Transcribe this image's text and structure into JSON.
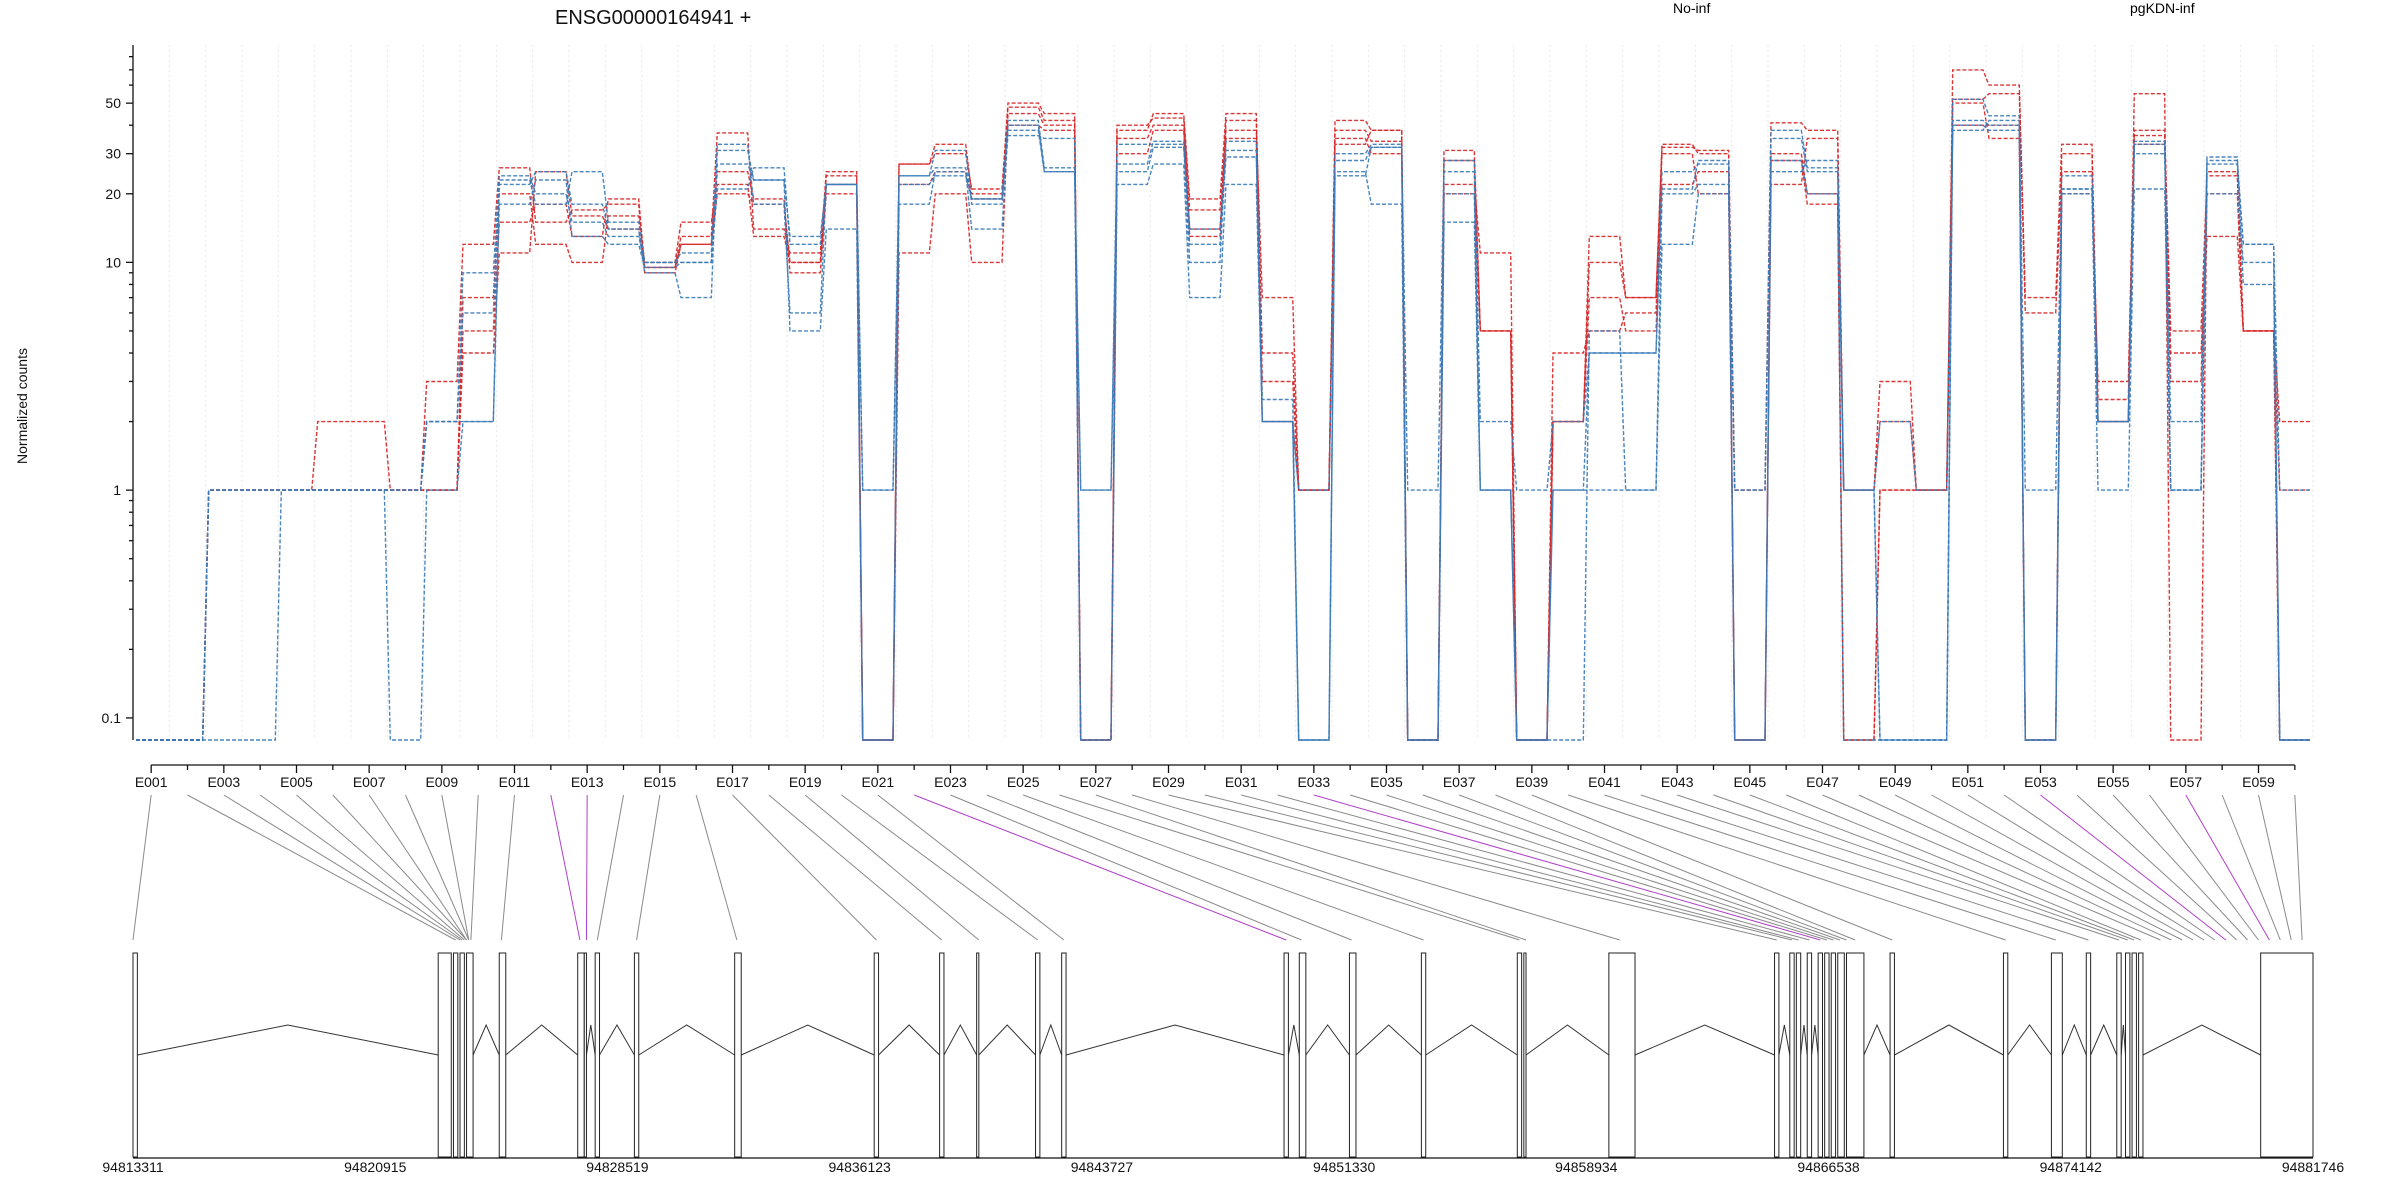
{
  "chart_data": {
    "type": "line",
    "title": "ENSG00000164941 +",
    "ylabel": "Normalized counts",
    "yscale": "log",
    "ylim": [
      0.08,
      90
    ],
    "yticks": [
      0.1,
      1,
      10,
      20,
      30,
      50
    ],
    "yticklabels": [
      "0.1",
      "1",
      "10",
      "20",
      "30",
      "50"
    ],
    "legend": [
      {
        "name": "No-inf",
        "color": "#d62728"
      },
      {
        "name": "pgKDN-inf",
        "color": "#3b7bb8"
      }
    ],
    "exons": [
      "E001",
      "E002",
      "E003",
      "E004",
      "E005",
      "E006",
      "E007",
      "E008",
      "E009",
      "E010",
      "E011",
      "E012",
      "E013",
      "E014",
      "E015",
      "E016",
      "E017",
      "E018",
      "E019",
      "E020",
      "E021",
      "E022",
      "E023",
      "E024",
      "E025",
      "E026",
      "E027",
      "E028",
      "E029",
      "E030",
      "E031",
      "E032",
      "E033",
      "E034",
      "E035",
      "E036",
      "E037",
      "E038",
      "E039",
      "E040",
      "E041",
      "E042",
      "E043",
      "E044",
      "E045",
      "E046",
      "E047",
      "E048",
      "E049",
      "E050",
      "E051",
      "E052",
      "E053",
      "E054",
      "E055",
      "E056",
      "E057",
      "E058",
      "E059",
      "E060"
    ],
    "exon_tick_labels": [
      "E001",
      "E003",
      "E005",
      "E007",
      "E009",
      "E011",
      "E013",
      "E015",
      "E017",
      "E019",
      "E021",
      "E023",
      "E025",
      "E027",
      "E029",
      "E031",
      "E033",
      "E035",
      "E037",
      "E039",
      "E041",
      "E043",
      "E045",
      "E047",
      "E049",
      "E051",
      "E053",
      "E055",
      "E057",
      "E059"
    ],
    "series": [
      {
        "group": "No-inf",
        "values": [
          0.08,
          0.08,
          1.0,
          1.0,
          1.0,
          1.0,
          1.0,
          1.0,
          1.0,
          4.0,
          11.0,
          25.0,
          16.0,
          14.0,
          9.5,
          12.0,
          25.0,
          19.0,
          9.0,
          22.0,
          0.08,
          22.0,
          25.0,
          19.0,
          40.0,
          38.0,
          0.08,
          30.0,
          38.0,
          14.0,
          35.0,
          2.0,
          1.0,
          35.0,
          30.0,
          0.08,
          28.0,
          5.0,
          0.08,
          2.0,
          7.0,
          5.0,
          22.0,
          25.0,
          0.08,
          30.0,
          20.0,
          0.08,
          1.0,
          1.0,
          40.0,
          40.0,
          0.08,
          30.0,
          2.5,
          33.0,
          3.0,
          20.0,
          5.0,
          0.08
        ]
      },
      {
        "group": "No-inf",
        "values": [
          0.08,
          0.08,
          1.0,
          1.0,
          1.0,
          1.0,
          1.0,
          1.0,
          1.0,
          5.0,
          15.0,
          18.0,
          13.0,
          19.0,
          9.5,
          13.0,
          37.0,
          14.0,
          11.0,
          25.0,
          0.08,
          27.0,
          30.0,
          21.0,
          50.0,
          45.0,
          0.08,
          38.0,
          45.0,
          19.0,
          45.0,
          3.0,
          1.0,
          42.0,
          38.0,
          0.08,
          31.0,
          5.0,
          0.08,
          2.0,
          10.0,
          7.0,
          32.0,
          31.0,
          1.0,
          41.0,
          38.0,
          1.0,
          3.0,
          1.0,
          70.0,
          60.0,
          7.0,
          33.0,
          2.0,
          55.0,
          0.08,
          25.0,
          5.0,
          2.0
        ]
      },
      {
        "group": "No-inf",
        "values": [
          0.08,
          0.08,
          1.0,
          1.0,
          1.0,
          2.0,
          2.0,
          1.0,
          1.0,
          7.0,
          20.0,
          12.0,
          10.0,
          16.0,
          10.0,
          15.0,
          22.0,
          13.0,
          10.0,
          20.0,
          0.08,
          11.0,
          20.0,
          10.0,
          45.0,
          40.0,
          0.08,
          35.0,
          40.0,
          13.0,
          42.0,
          4.0,
          1.0,
          38.0,
          34.0,
          0.08,
          22.0,
          11.0,
          0.08,
          4.0,
          5.0,
          6.0,
          30.0,
          20.0,
          0.08,
          22.0,
          35.0,
          1.0,
          2.0,
          1.0,
          50.0,
          35.0,
          0.08,
          20.0,
          3.0,
          38.0,
          4.0,
          13.0,
          5.0,
          1.0
        ]
      },
      {
        "group": "No-inf",
        "values": [
          0.08,
          0.08,
          1.0,
          1.0,
          1.0,
          1.0,
          1.0,
          1.0,
          3.0,
          12.0,
          26.0,
          15.0,
          17.0,
          18.0,
          9.0,
          12.0,
          20.0,
          18.0,
          10.0,
          24.0,
          0.08,
          27.0,
          33.0,
          20.0,
          48.0,
          42.0,
          0.08,
          40.0,
          43.0,
          17.0,
          38.0,
          7.0,
          1.0,
          33.0,
          38.0,
          0.08,
          20.0,
          5.0,
          0.08,
          2.0,
          13.0,
          7.0,
          33.0,
          30.0,
          0.08,
          28.0,
          18.0,
          0.08,
          1.0,
          1.0,
          52.0,
          55.0,
          6.0,
          25.0,
          2.0,
          36.0,
          5.0,
          24.0,
          5.0,
          0.08
        ]
      },
      {
        "group": "pgKDN-inf",
        "values": [
          0.08,
          0.08,
          1.0,
          1.0,
          1.0,
          1.0,
          1.0,
          0.08,
          1.0,
          2.0,
          18.0,
          23.0,
          13.0,
          12.0,
          9.5,
          10.0,
          27.0,
          23.0,
          5.0,
          14.0,
          0.08,
          18.0,
          25.0,
          14.0,
          38.0,
          25.0,
          0.08,
          25.0,
          32.0,
          12.0,
          29.0,
          2.5,
          0.08,
          30.0,
          33.0,
          0.08,
          15.0,
          1.0,
          0.08,
          0.08,
          5.0,
          1.0,
          20.0,
          22.0,
          0.08,
          28.0,
          20.0,
          0.08,
          0.08,
          0.08,
          40.0,
          38.0,
          0.08,
          20.0,
          1.0,
          21.0,
          1.0,
          20.0,
          10.0,
          0.08
        ]
      },
      {
        "group": "pgKDN-inf",
        "values": [
          0.08,
          0.08,
          0.08,
          0.08,
          1.0,
          1.0,
          1.0,
          1.0,
          2.0,
          6.0,
          22.0,
          25.0,
          18.0,
          14.0,
          9.0,
          7.0,
          33.0,
          18.0,
          6.0,
          22.0,
          0.08,
          24.0,
          26.0,
          19.0,
          36.0,
          35.0,
          0.08,
          22.0,
          27.0,
          7.0,
          22.0,
          2.0,
          0.08,
          25.0,
          18.0,
          0.08,
          25.0,
          1.0,
          0.08,
          1.0,
          1.0,
          1.0,
          12.0,
          20.0,
          1.0,
          35.0,
          25.0,
          1.0,
          0.08,
          0.08,
          52.0,
          44.0,
          0.08,
          21.0,
          2.0,
          30.0,
          1.0,
          27.0,
          12.0,
          0.08
        ]
      },
      {
        "group": "pgKDN-inf",
        "values": [
          0.08,
          0.08,
          1.0,
          1.0,
          1.0,
          1.0,
          1.0,
          1.0,
          2.0,
          9.0,
          24.0,
          20.0,
          15.0,
          13.0,
          10.0,
          11.0,
          31.0,
          23.0,
          13.0,
          22.0,
          1.0,
          24.0,
          31.0,
          18.0,
          40.0,
          25.0,
          1.0,
          27.0,
          34.0,
          10.0,
          34.0,
          2.0,
          1.0,
          28.0,
          32.0,
          1.0,
          28.0,
          2.0,
          1.0,
          2.0,
          4.0,
          4.0,
          21.0,
          28.0,
          1.0,
          38.0,
          26.0,
          1.0,
          2.0,
          1.0,
          38.0,
          42.0,
          1.0,
          24.0,
          2.0,
          34.0,
          2.0,
          28.0,
          12.0,
          1.0
        ]
      },
      {
        "group": "pgKDN-inf",
        "values": [
          0.08,
          0.08,
          1.0,
          1.0,
          1.0,
          1.0,
          1.0,
          1.0,
          2.0,
          2.0,
          23.0,
          18.0,
          25.0,
          15.0,
          10.0,
          10.0,
          21.0,
          26.0,
          12.0,
          22.0,
          1.0,
          22.0,
          24.0,
          19.0,
          42.0,
          26.0,
          1.0,
          33.0,
          33.0,
          14.0,
          31.0,
          2.0,
          0.08,
          24.0,
          32.0,
          0.08,
          20.0,
          1.0,
          0.08,
          1.0,
          4.0,
          4.0,
          25.0,
          27.0,
          0.08,
          25.0,
          28.0,
          1.0,
          0.08,
          0.08,
          42.0,
          40.0,
          0.08,
          21.0,
          2.0,
          33.0,
          1.0,
          29.0,
          8.0,
          0.08
        ]
      }
    ],
    "coordinate_labels": [
      "94813311",
      "94820915",
      "94828519",
      "94836123",
      "94843727",
      "94851330",
      "94858934",
      "94866538",
      "94874142",
      "94881746"
    ],
    "gene_model": {
      "exon_color": "#ffffff",
      "highlight_color": "#cc22cc",
      "shaded_color": "#c8c8c8"
    }
  }
}
